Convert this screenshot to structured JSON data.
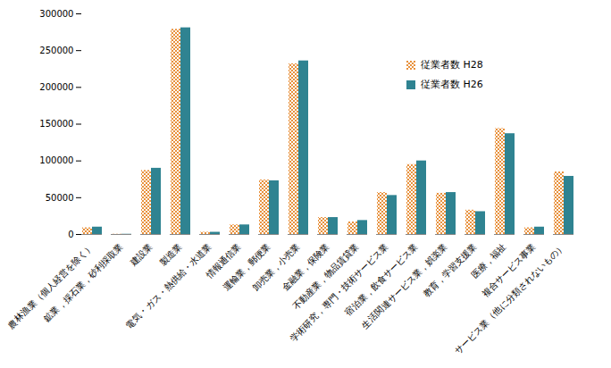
{
  "chart_data": {
    "type": "bar",
    "categories": [
      "農林漁業（個人経営を除く）",
      "鉱業，採石業，砂利採取業",
      "建設業",
      "製造業",
      "電気・ガス・熱供給・水道業",
      "情報通信業",
      "運輸業，郵便業",
      "卸売業，小売業",
      "金融業，保険業",
      "不動産業，物品賃貸業",
      "学術研究，専門・技術サービス業",
      "宿泊業，飲食サービス業",
      "生活関連サービス業，娯楽業",
      "教育，学習支援業",
      "医療，福祉",
      "複合サービス事業",
      "サービス業（他に分類されないもの）"
    ],
    "series": [
      {
        "name": "従業者数 H28",
        "color": "#e8913c",
        "values": [
          9000,
          300,
          87000,
          279000,
          3000,
          13000,
          74000,
          232000,
          23000,
          17000,
          57000,
          95000,
          56000,
          33000,
          144000,
          9000,
          85000
        ]
      },
      {
        "name": "従業者数 H26",
        "color": "#2f8391",
        "values": [
          10000,
          300,
          90000,
          281000,
          3000,
          13000,
          73000,
          236000,
          23000,
          19000,
          53000,
          100000,
          57000,
          31000,
          137000,
          10000,
          79000
        ]
      }
    ],
    "ylim": [
      0,
      300000
    ],
    "yticks": [
      0,
      50000,
      100000,
      150000,
      200000,
      250000,
      300000
    ],
    "grid": false,
    "legend": "top-right"
  }
}
